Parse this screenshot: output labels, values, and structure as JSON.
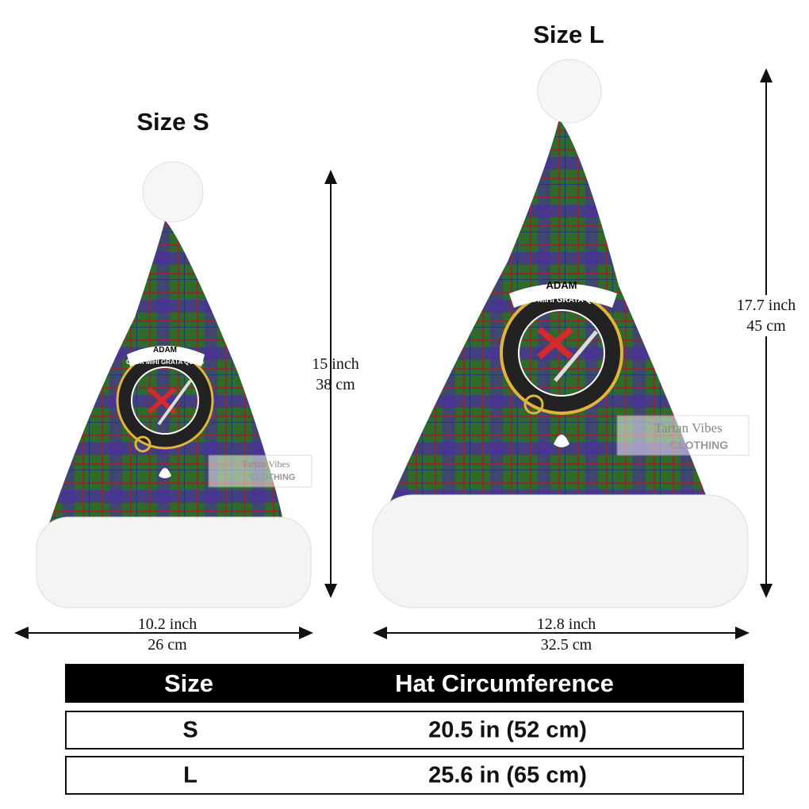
{
  "sizes": [
    {
      "label": "Size S",
      "height_in": "15 inch",
      "height_cm": "38 cm",
      "width_in": "10.2 inch",
      "width_cm": "26 cm"
    },
    {
      "label": "Size L",
      "height_in": "17.7 inch",
      "height_cm": "45 cm",
      "width_in": "12.8 inch",
      "width_cm": "32.5 cm"
    }
  ],
  "crest": {
    "name": "ADAM",
    "motto": "CRUX MIHI GRATA QUIES"
  },
  "watermark": {
    "line1": "Tartan Vibes",
    "line2": "CLOTHING"
  },
  "table": {
    "headers": [
      "Size",
      "Hat Circumference"
    ],
    "rows": [
      [
        "S",
        "20.5 in (52 cm)"
      ],
      [
        "L",
        "25.6 in (65 cm)"
      ]
    ]
  },
  "colors": {
    "tartan_green": "#2f6a2a",
    "tartan_purple": "#4b2f9c",
    "tartan_red": "#8e2b2b",
    "fur": "#f4f4f2"
  }
}
